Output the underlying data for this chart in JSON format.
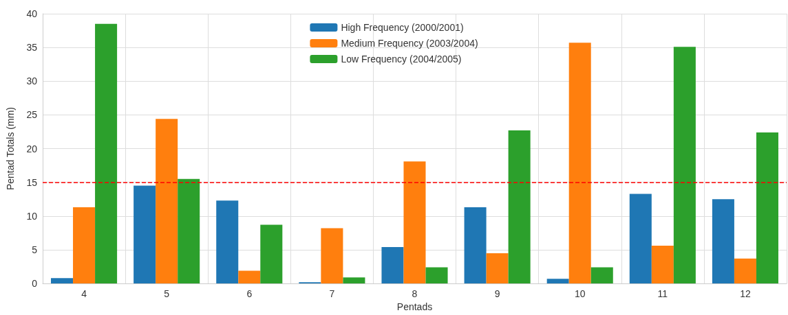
{
  "chart_data": {
    "type": "bar",
    "xlabel": "Pentads",
    "ylabel": "Pentad Totals (mm)",
    "categories": [
      "4",
      "5",
      "6",
      "7",
      "8",
      "9",
      "10",
      "11",
      "12"
    ],
    "series": [
      {
        "name": "High Frequency (2000/2001)",
        "color": "#1f77b4",
        "values": [
          0.8,
          14.5,
          12.3,
          0.2,
          5.4,
          11.3,
          0.7,
          13.3,
          12.5
        ]
      },
      {
        "name": "Medium Frequency (2003/2004)",
        "color": "#ff7f0e",
        "values": [
          11.3,
          24.4,
          1.9,
          8.2,
          18.1,
          4.5,
          35.7,
          5.6,
          3.7
        ]
      },
      {
        "name": "Low Frequency (2004/2005)",
        "color": "#2ca02c",
        "values": [
          38.5,
          15.5,
          8.7,
          0.9,
          2.4,
          22.7,
          2.4,
          35.1,
          22.4
        ]
      }
    ],
    "ylim": [
      0,
      40
    ],
    "yticks": [
      0,
      5,
      10,
      15,
      20,
      25,
      30,
      35,
      40
    ],
    "ref_lines": [
      {
        "axis": "y",
        "value": 15,
        "color": "#ff0000",
        "line_style": "dashed"
      }
    ],
    "grid": true,
    "legend": "top"
  }
}
